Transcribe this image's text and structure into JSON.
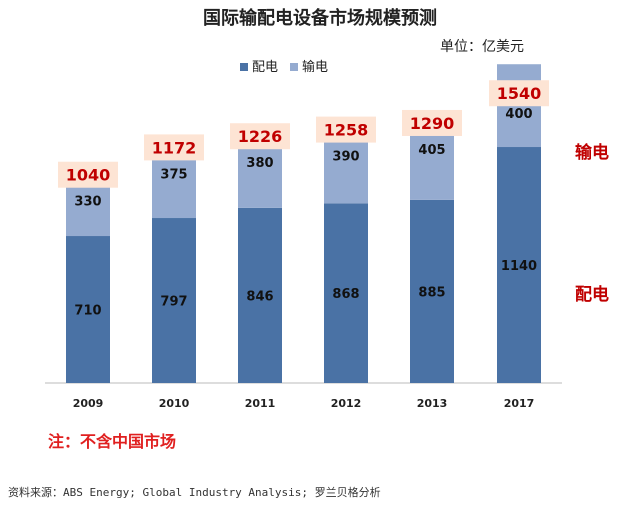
{
  "chart_data": {
    "type": "bar",
    "stacked": true,
    "title": "国际输配电设备市场规模预测",
    "unit_label": "单位：亿美元",
    "categories": [
      "2009",
      "2010",
      "2011",
      "2012",
      "2013",
      "2017"
    ],
    "series": [
      {
        "name": "配电",
        "values": [
          710,
          797,
          846,
          868,
          885,
          1140
        ],
        "color": "#4a72a5"
      },
      {
        "name": "输电",
        "values": [
          330,
          375,
          380,
          390,
          405,
          400
        ],
        "color": "#95abd0"
      }
    ],
    "totals": [
      1040,
      1172,
      1226,
      1258,
      1290,
      1540
    ],
    "legend_position": "top",
    "side_labels": {
      "transmission": "输电",
      "distribution": "配电"
    },
    "grid": false
  },
  "note": "注：不含中国市场",
  "source": "资料来源：ABS Energy; Global Industry Analysis; 罗兰贝格分析",
  "colors": {
    "total_box": "#fde4d4",
    "total_text": "#c00000",
    "side_text": "#c00000"
  }
}
